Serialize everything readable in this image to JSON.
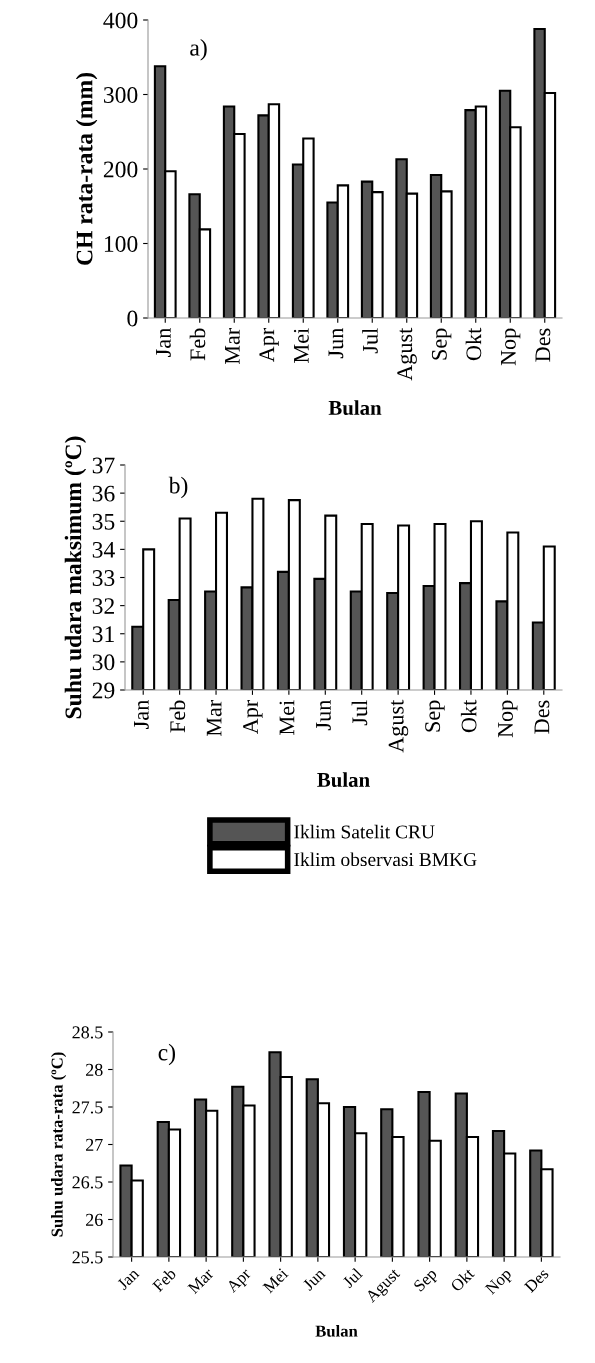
{
  "chart_data": [
    {
      "type": "bar",
      "ylabel": "CH rata-rata (mm)",
      "xlabel": "Bulan",
      "annotations": [
        "a)"
      ],
      "categories": [
        "Jan",
        "Feb",
        "Mar",
        "Apr",
        "Mei",
        "Jun",
        "Jul",
        "Agust",
        "Sep",
        "Okt",
        "Nop",
        "Des"
      ],
      "ylim": [
        0,
        400
      ],
      "yticks": [
        0,
        100,
        200,
        300,
        400
      ],
      "grid": false,
      "series": [
        {
          "color": "#555555",
          "values": [
            338,
            166,
            284,
            272,
            206,
            155,
            183,
            213,
            192,
            279,
            305,
            388
          ]
        },
        {
          "color": "#ffffff",
          "values": [
            197,
            119,
            247,
            287,
            241,
            178,
            169,
            167,
            170,
            284,
            256,
            302
          ]
        }
      ]
    },
    {
      "type": "bar",
      "ylabel": "Suhu udara maksimum (ºC)",
      "xlabel": "Bulan",
      "annotations": [
        "b)"
      ],
      "categories": [
        "Jan",
        "Feb",
        "Mar",
        "Apr",
        "Mei",
        "Jun",
        "Jul",
        "Agust",
        "Sep",
        "Okt",
        "Nop",
        "Des"
      ],
      "ylim": [
        29,
        37
      ],
      "yticks": [
        29,
        30,
        31,
        32,
        33,
        34,
        35,
        36,
        37
      ],
      "grid": false,
      "legend": "bottom",
      "series": [
        {
          "name": "Iklim Satelit CRU",
          "color": "#555555",
          "values": [
            31.25,
            32.2,
            32.5,
            32.65,
            33.2,
            32.95,
            32.5,
            32.45,
            32.7,
            32.8,
            32.15,
            31.4
          ]
        },
        {
          "name": "Iklim observasi BMKG",
          "color": "#ffffff",
          "values": [
            34.0,
            35.1,
            35.3,
            35.8,
            35.75,
            35.2,
            34.9,
            34.85,
            34.9,
            35.0,
            34.6,
            34.1
          ]
        }
      ]
    },
    {
      "type": "bar",
      "ylabel": "Suhu udara rata-rata (ºC)",
      "xlabel": "Bulan",
      "annotations": [
        "c)"
      ],
      "categories": [
        "Jan",
        "Feb",
        "Mar",
        "Apr",
        "Mei",
        "Jun",
        "Jul",
        "Agust",
        "Sep",
        "Okt",
        "Nop",
        "Des"
      ],
      "ylim": [
        25.5,
        28.5
      ],
      "yticks": [
        25.5,
        26,
        26.5,
        27,
        27.5,
        28,
        28.5
      ],
      "grid": false,
      "series": [
        {
          "color": "#555555",
          "values": [
            26.72,
            27.3,
            27.6,
            27.77,
            28.23,
            27.87,
            27.5,
            27.47,
            27.7,
            27.68,
            27.18,
            26.92
          ]
        },
        {
          "color": "#ffffff",
          "values": [
            26.52,
            27.2,
            27.45,
            27.52,
            27.9,
            27.55,
            27.15,
            27.1,
            27.05,
            27.1,
            26.88,
            26.67
          ]
        }
      ]
    }
  ]
}
